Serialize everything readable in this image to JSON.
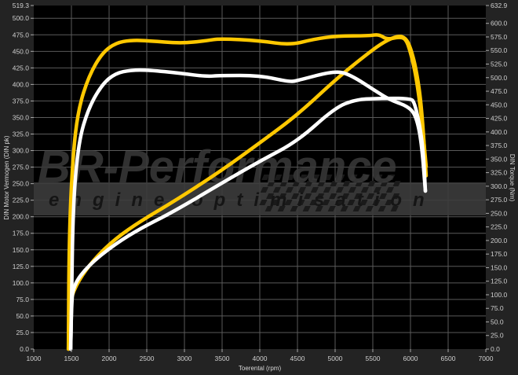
{
  "chart_data": {
    "type": "line",
    "xlabel": "Toerental (rpm)",
    "ylabel_left": "DIN Motor Vermogen (DIN pk)",
    "ylabel_right": "DIN Torque (Nm)",
    "xlim": [
      1000,
      7000
    ],
    "ylim_left": [
      0,
      519.3
    ],
    "ylim_right": [
      0,
      632.9
    ],
    "x_ticks": [
      "1000",
      "1500",
      "2000",
      "2500",
      "3000",
      "3500",
      "4000",
      "4500",
      "5000",
      "5500",
      "6000",
      "6500",
      "7000"
    ],
    "y_left_ticks": [
      "0.0",
      "25.0",
      "50.0",
      "75.0",
      "100.0",
      "125.0",
      "150.0",
      "175.0",
      "200.0",
      "225.0",
      "250.0",
      "275.0",
      "300.0",
      "325.0",
      "350.0",
      "375.0",
      "400.0",
      "425.0",
      "450.0",
      "475.0",
      "500.0",
      "519.3"
    ],
    "y_right_ticks": [
      "0.0",
      "25.0",
      "50.0",
      "75.0",
      "100.0",
      "125.0",
      "150.0",
      "175.0",
      "200.0",
      "225.0",
      "250.0",
      "275.0",
      "300.0",
      "325.0",
      "350.0",
      "375.0",
      "400.0",
      "425.0",
      "450.0",
      "475.0",
      "500.0",
      "525.0",
      "550.0",
      "575.0",
      "600.0",
      "632.9"
    ],
    "grid": true,
    "series": [
      {
        "axis": "right",
        "color": "#FFC800",
        "points": [
          [
            1460,
            0
          ],
          [
            1470,
            212
          ],
          [
            1520,
            357
          ],
          [
            1590,
            441
          ],
          [
            1730,
            503
          ],
          [
            1910,
            546
          ],
          [
            2090,
            564
          ],
          [
            2290,
            569
          ],
          [
            2530,
            568
          ],
          [
            2950,
            563
          ],
          [
            3290,
            568
          ],
          [
            3470,
            572
          ],
          [
            4000,
            568
          ],
          [
            4400,
            560
          ],
          [
            4720,
            571
          ],
          [
            5031,
            577
          ],
          [
            5448,
            577
          ],
          [
            5583,
            580
          ],
          [
            5688,
            570
          ],
          [
            5844,
            575
          ],
          [
            5938,
            572
          ],
          [
            6000,
            547
          ],
          [
            6073,
            504
          ],
          [
            6146,
            430
          ],
          [
            6208,
            336
          ]
        ]
      },
      {
        "axis": "left",
        "color": "#FFC800",
        "points": [
          [
            1460,
            0
          ],
          [
            1475,
            72
          ],
          [
            1594,
            104
          ],
          [
            1802,
            136
          ],
          [
            2083,
            167
          ],
          [
            2427,
            194
          ],
          [
            2844,
            222
          ],
          [
            3469,
            268
          ],
          [
            4052,
            316
          ],
          [
            4510,
            355
          ],
          [
            5031,
            410
          ],
          [
            5448,
            448
          ],
          [
            5656,
            465
          ],
          [
            5844,
            474
          ],
          [
            5938,
            470
          ],
          [
            6000,
            456
          ],
          [
            6073,
            425
          ],
          [
            6146,
            370
          ],
          [
            6208,
            262
          ]
        ]
      },
      {
        "axis": "right",
        "color": "#FFFFFF",
        "points": [
          [
            1490,
            0
          ],
          [
            1500,
            60
          ],
          [
            1520,
            262
          ],
          [
            1594,
            382
          ],
          [
            1730,
            445
          ],
          [
            1910,
            488
          ],
          [
            2083,
            508
          ],
          [
            2290,
            514
          ],
          [
            2530,
            514
          ],
          [
            2950,
            508
          ],
          [
            3290,
            502
          ],
          [
            3470,
            504
          ],
          [
            4000,
            504
          ],
          [
            4400,
            492
          ],
          [
            4510,
            495
          ],
          [
            5000,
            513
          ],
          [
            5208,
            505
          ],
          [
            5552,
            474
          ],
          [
            5729,
            459
          ],
          [
            5969,
            447
          ],
          [
            6073,
            430
          ],
          [
            6146,
            382
          ],
          [
            6198,
            291
          ]
        ]
      },
      {
        "axis": "left",
        "color": "#FFFFFF",
        "points": [
          [
            1490,
            0
          ],
          [
            1500,
            60
          ],
          [
            1521,
            96
          ],
          [
            1729,
            127
          ],
          [
            2083,
            159
          ],
          [
            2427,
            183
          ],
          [
            2844,
            207
          ],
          [
            3469,
            249
          ],
          [
            4000,
            284
          ],
          [
            4500,
            314
          ],
          [
            5000,
            365
          ],
          [
            5271,
            377
          ],
          [
            5552,
            379
          ],
          [
            6000,
            379
          ],
          [
            6052,
            373
          ],
          [
            6120,
            340
          ],
          [
            6170,
            300
          ],
          [
            6198,
            239
          ]
        ]
      }
    ]
  },
  "watermark": {
    "brand": "BR-Performance",
    "tagline": "engine optimisation"
  }
}
